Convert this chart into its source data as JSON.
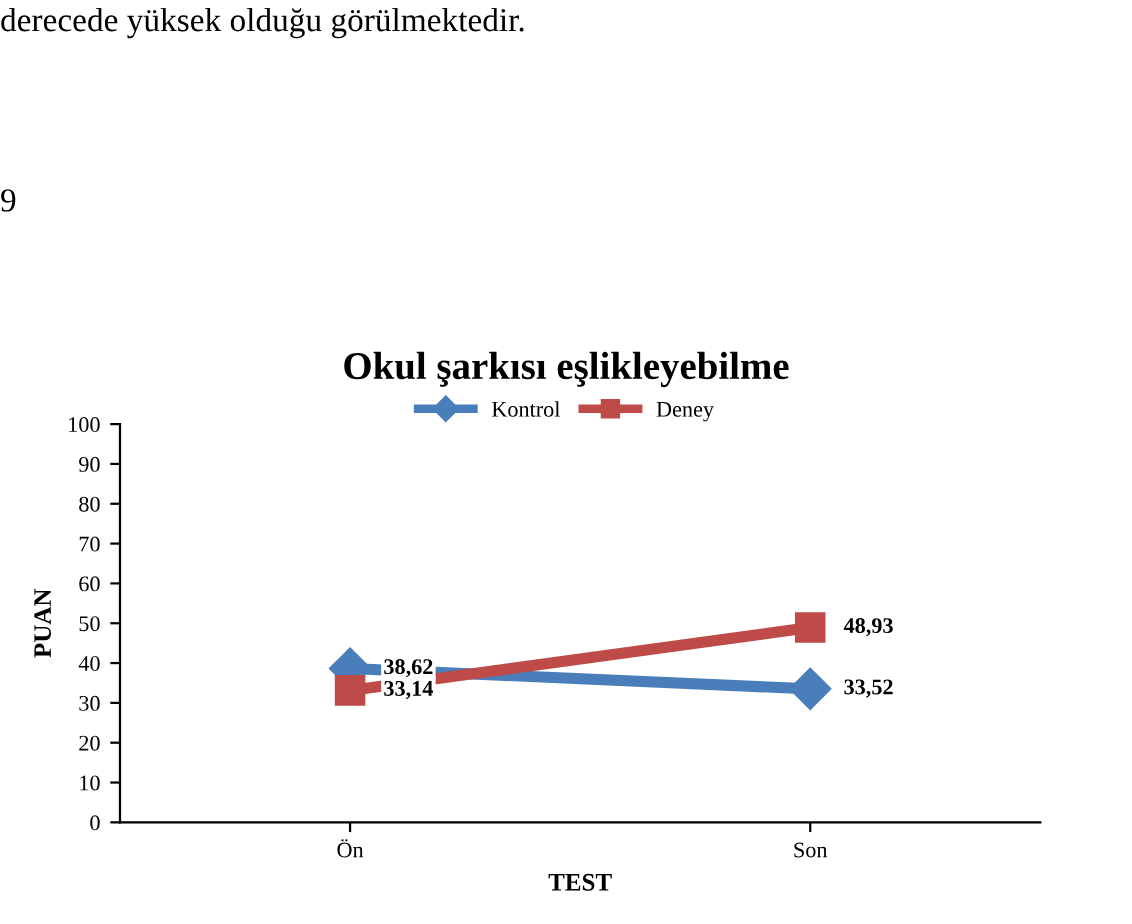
{
  "chart_data": {
    "type": "line",
    "title": "Okul şarkısı eşlikleyebilme",
    "xlabel": "TEST",
    "ylabel": "PUAN",
    "categories": [
      "Ön",
      "Son"
    ],
    "series": [
      {
        "name": "Kontrol",
        "color": "#4a7ebb",
        "values": [
          38.62,
          33.52
        ],
        "value_labels": [
          "38,62",
          "33,52"
        ],
        "marker": "diamond"
      },
      {
        "name": "Deney",
        "color": "#be4b48",
        "values": [
          33.14,
          48.93
        ],
        "value_labels": [
          "33,14",
          "48,93"
        ],
        "marker": "square"
      }
    ],
    "ylim": [
      0,
      100
    ],
    "yticks": [
      0,
      10,
      20,
      30,
      40,
      50,
      60,
      70,
      80,
      90,
      100
    ],
    "grid": false,
    "legend": "top",
    "line_style": "solid",
    "annotations": [
      "derecede yüksek olduğu görülmektedir.",
      "9"
    ]
  }
}
